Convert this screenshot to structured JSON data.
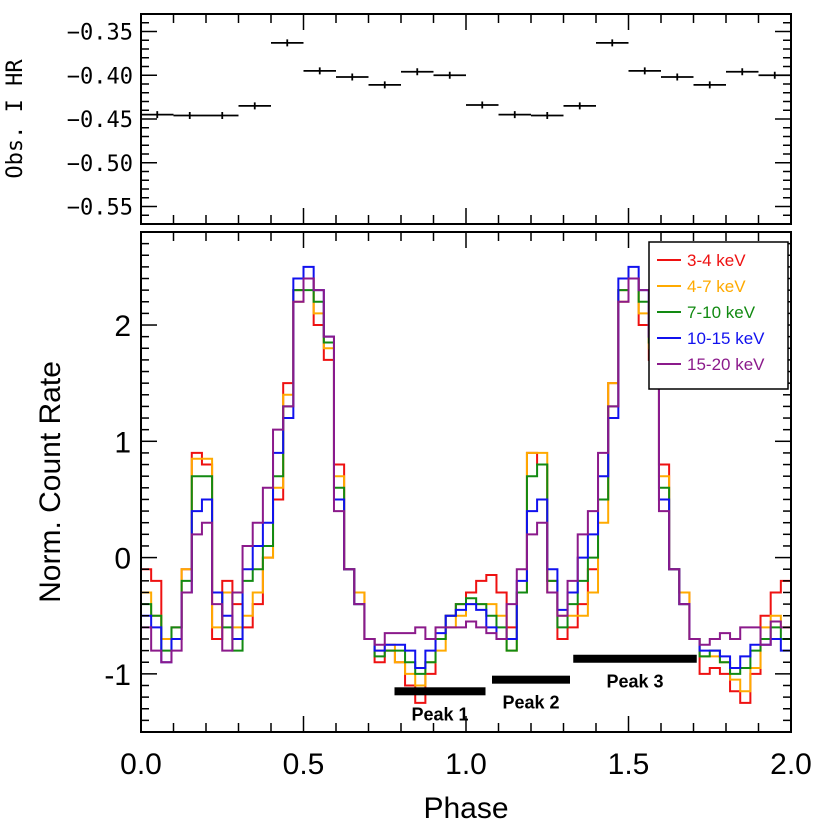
{
  "chart_data": [
    {
      "type": "line",
      "panel": "top",
      "ylabel": "Obs. I HR",
      "ylim": [
        -0.57,
        -0.33
      ],
      "xlim": [
        0.0,
        2.0
      ],
      "yticks": [
        -0.35,
        -0.4,
        -0.45,
        -0.5,
        -0.55
      ],
      "ytick_labels": [
        "−0.35",
        "−0.40",
        "−0.45",
        "−0.50",
        "−0.55"
      ],
      "series": [
        {
          "name": "HR",
          "style": "errorbar",
          "x": [
            0.05,
            0.15,
            0.25,
            0.35,
            0.45,
            0.55,
            0.65,
            0.75,
            0.85,
            0.95,
            1.05,
            1.15,
            1.25,
            1.35,
            1.45,
            1.55,
            1.65,
            1.75,
            1.85,
            1.95
          ],
          "x_halfwidth": 0.05,
          "y": [
            -0.445,
            -0.446,
            -0.446,
            -0.435,
            -0.363,
            -0.395,
            -0.402,
            -0.411,
            -0.396,
            -0.4,
            -0.434,
            -0.445,
            -0.446,
            -0.435,
            -0.363,
            -0.395,
            -0.402,
            -0.411,
            -0.396,
            -0.4
          ],
          "y_err": 0.004
        }
      ]
    },
    {
      "type": "line",
      "panel": "bottom",
      "xlabel": "Phase",
      "ylabel": "Norm. Count Rate",
      "xlim": [
        0.0,
        2.0
      ],
      "ylim": [
        -1.5,
        2.8
      ],
      "xticks": [
        0.0,
        0.5,
        1.0,
        1.5,
        2.0
      ],
      "xtick_labels": [
        "0.0",
        "0.5",
        "1.0",
        "1.5",
        "2.0"
      ],
      "yticks": [
        -1,
        0,
        1,
        2
      ],
      "ytick_labels": [
        "-1",
        "0",
        "1",
        "2"
      ],
      "legend_position": "top-right",
      "bin_width": 0.03125,
      "series": [
        {
          "name": "3-4 keV",
          "color": "#ee1111",
          "values": [
            -0.1,
            -0.2,
            -0.7,
            -0.6,
            -0.1,
            0.9,
            0.8,
            -0.7,
            -0.2,
            -0.4,
            -0.6,
            -0.4,
            0.0,
            0.5,
            1.5,
            2.3,
            2.4,
            2.0,
            1.7,
            0.8,
            -0.1,
            -0.3,
            -0.7,
            -0.9,
            -0.8,
            -0.9,
            -1.1,
            -1.25,
            -1.0,
            -0.7,
            -0.5,
            -0.4,
            -0.3,
            -0.2,
            -0.15,
            -0.3,
            -0.6,
            -0.3,
            0.9,
            0.8,
            -0.2,
            -0.7,
            -0.6,
            -0.4,
            -0.1,
            0.5,
            1.5,
            2.3,
            2.4,
            2.0,
            1.7,
            0.8,
            -0.1,
            -0.3,
            -0.7,
            -1.0,
            -0.95,
            -1.0,
            -1.15,
            -1.25,
            -1.0,
            -0.5,
            -0.3,
            -0.2
          ]
        },
        {
          "name": "4-7 keV",
          "color": "#ffaa00",
          "values": [
            -0.3,
            -0.5,
            -0.7,
            -0.7,
            -0.1,
            0.85,
            0.85,
            -0.6,
            -0.3,
            -0.6,
            -0.5,
            -0.3,
            0.0,
            0.6,
            1.4,
            2.2,
            2.4,
            2.1,
            1.8,
            0.7,
            -0.1,
            -0.3,
            -0.7,
            -0.8,
            -0.75,
            -0.9,
            -1.0,
            -1.1,
            -0.9,
            -0.8,
            -0.6,
            -0.5,
            -0.4,
            -0.4,
            -0.4,
            -0.5,
            -0.8,
            -0.3,
            0.9,
            0.9,
            -0.3,
            -0.5,
            -0.5,
            -0.5,
            -0.3,
            0.3,
            1.5,
            2.2,
            2.4,
            2.1,
            1.8,
            0.7,
            -0.1,
            -0.3,
            -0.7,
            -0.85,
            -0.85,
            -0.9,
            -1.05,
            -1.15,
            -0.95,
            -0.6,
            -0.5,
            -0.6
          ]
        },
        {
          "name": "7-10 keV",
          "color": "#128a12",
          "values": [
            -0.4,
            -0.5,
            -0.8,
            -0.6,
            -0.2,
            0.7,
            0.7,
            -0.3,
            -0.6,
            -0.8,
            -0.2,
            -0.1,
            0.1,
            0.7,
            1.3,
            2.3,
            2.3,
            2.2,
            1.85,
            0.6,
            -0.1,
            -0.4,
            -0.7,
            -0.85,
            -0.8,
            -0.8,
            -0.9,
            -1.0,
            -0.9,
            -0.7,
            -0.5,
            -0.4,
            -0.35,
            -0.4,
            -0.5,
            -0.6,
            -0.8,
            -0.3,
            0.7,
            0.8,
            -0.2,
            -0.6,
            -0.4,
            -0.2,
            0.0,
            0.5,
            1.3,
            2.3,
            2.4,
            2.2,
            1.85,
            0.6,
            -0.1,
            -0.4,
            -0.7,
            -0.85,
            -0.8,
            -0.9,
            -1.0,
            -0.95,
            -0.8,
            -0.7,
            -0.6,
            -0.7
          ]
        },
        {
          "name": "10-15 keV",
          "color": "#1111ee",
          "values": [
            -0.5,
            -0.6,
            -0.9,
            -0.7,
            -0.3,
            0.4,
            0.5,
            -0.3,
            -0.5,
            -0.7,
            -0.1,
            0.1,
            0.3,
            0.9,
            1.2,
            2.4,
            2.5,
            2.3,
            1.9,
            0.5,
            -0.1,
            -0.4,
            -0.7,
            -0.8,
            -0.75,
            -0.75,
            -0.8,
            -0.95,
            -0.8,
            -0.65,
            -0.5,
            -0.45,
            -0.4,
            -0.45,
            -0.6,
            -0.7,
            -0.7,
            -0.2,
            0.4,
            0.5,
            -0.1,
            -0.45,
            -0.3,
            0.0,
            0.2,
            0.7,
            1.2,
            2.4,
            2.5,
            2.3,
            1.9,
            0.5,
            -0.1,
            -0.4,
            -0.7,
            -0.8,
            -0.8,
            -0.85,
            -0.95,
            -0.85,
            -0.75,
            -0.75,
            -0.7,
            -0.8
          ]
        },
        {
          "name": "15-20 keV",
          "color": "#8b1a8b",
          "values": [
            -0.6,
            -0.8,
            -0.9,
            -0.8,
            -0.3,
            0.2,
            0.3,
            -0.4,
            -0.8,
            -0.3,
            0.1,
            0.3,
            0.6,
            1.1,
            1.3,
            2.2,
            2.4,
            2.3,
            1.9,
            0.4,
            -0.1,
            -0.4,
            -0.7,
            -0.75,
            -0.65,
            -0.65,
            -0.65,
            -0.6,
            -0.7,
            -0.6,
            -0.6,
            -0.6,
            -0.55,
            -0.6,
            -0.65,
            -0.7,
            -0.4,
            -0.1,
            0.2,
            0.3,
            -0.3,
            -0.5,
            -0.2,
            0.2,
            0.4,
            0.9,
            1.3,
            2.2,
            2.4,
            2.3,
            1.9,
            0.4,
            -0.1,
            -0.4,
            -0.7,
            -0.75,
            -0.7,
            -0.65,
            -0.7,
            -0.6,
            -0.6,
            -0.75,
            -0.55,
            -0.6
          ]
        }
      ],
      "annotations": [
        {
          "label": "Peak 1",
          "x_range": [
            0.78,
            1.06
          ],
          "y": -1.15
        },
        {
          "label": "Peak 2",
          "x_range": [
            1.08,
            1.32
          ],
          "y": -1.05
        },
        {
          "label": "Peak 3",
          "x_range": [
            1.33,
            1.71
          ],
          "y": -0.87
        }
      ]
    }
  ]
}
